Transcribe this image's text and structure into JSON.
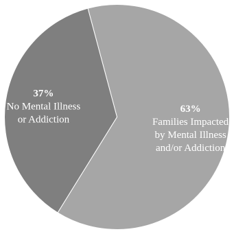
{
  "chart_data": {
    "type": "pie",
    "slices": [
      {
        "value": 63,
        "pct_label": "63%",
        "label_lines": [
          "Families Impacted",
          "by Mental Illness",
          "and/or Addiction"
        ],
        "color": "#a6a6a6"
      },
      {
        "value": 37,
        "pct_label": "37%",
        "label_lines": [
          "No Mental Illness",
          "or Addiction"
        ],
        "color": "#7f7f7f"
      }
    ]
  }
}
